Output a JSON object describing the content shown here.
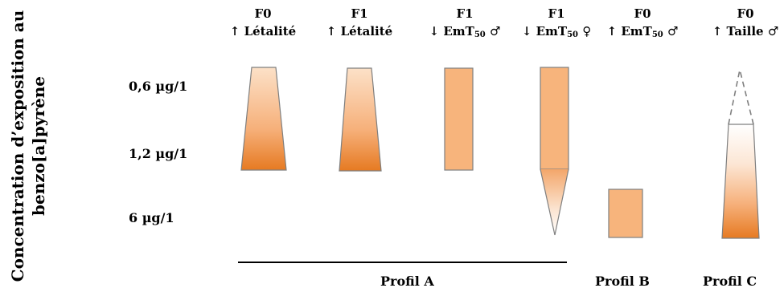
{
  "y_axis": {
    "title_line1": "Concentration d’exposition au",
    "title_line2": "benzo[a]pyrène"
  },
  "concentrations": [
    "0,6 µg/1",
    "1,2 µg/1",
    "6 µg/1"
  ],
  "columns": [
    {
      "generation": "F0",
      "effect_prefix": "↑ Létalité",
      "subscript": "",
      "effect_suffix": ""
    },
    {
      "generation": "F1",
      "effect_prefix": "↑ Létalité",
      "subscript": "",
      "effect_suffix": ""
    },
    {
      "generation": "F1",
      "effect_prefix": "↓ EmT",
      "subscript": "50",
      "effect_suffix": " ♂"
    },
    {
      "generation": "F1",
      "effect_prefix": "↓ EmT",
      "subscript": "50",
      "effect_suffix": " ♀"
    },
    {
      "generation": "F0",
      "effect_prefix": "↑ EmT",
      "subscript": "50",
      "effect_suffix": " ♂"
    },
    {
      "generation": "F0",
      "effect_prefix": "↑ Taille",
      "subscript": "",
      "effect_suffix": " ♂"
    }
  ],
  "profiles": {
    "a": "Profil A",
    "b": "Profil B",
    "c": "Profil C"
  },
  "colors": {
    "orange_dark": "#E67A22",
    "orange_light": "#FCE1C8",
    "orange_solid": "#F7B47C",
    "outline": "#7F7F7F"
  }
}
